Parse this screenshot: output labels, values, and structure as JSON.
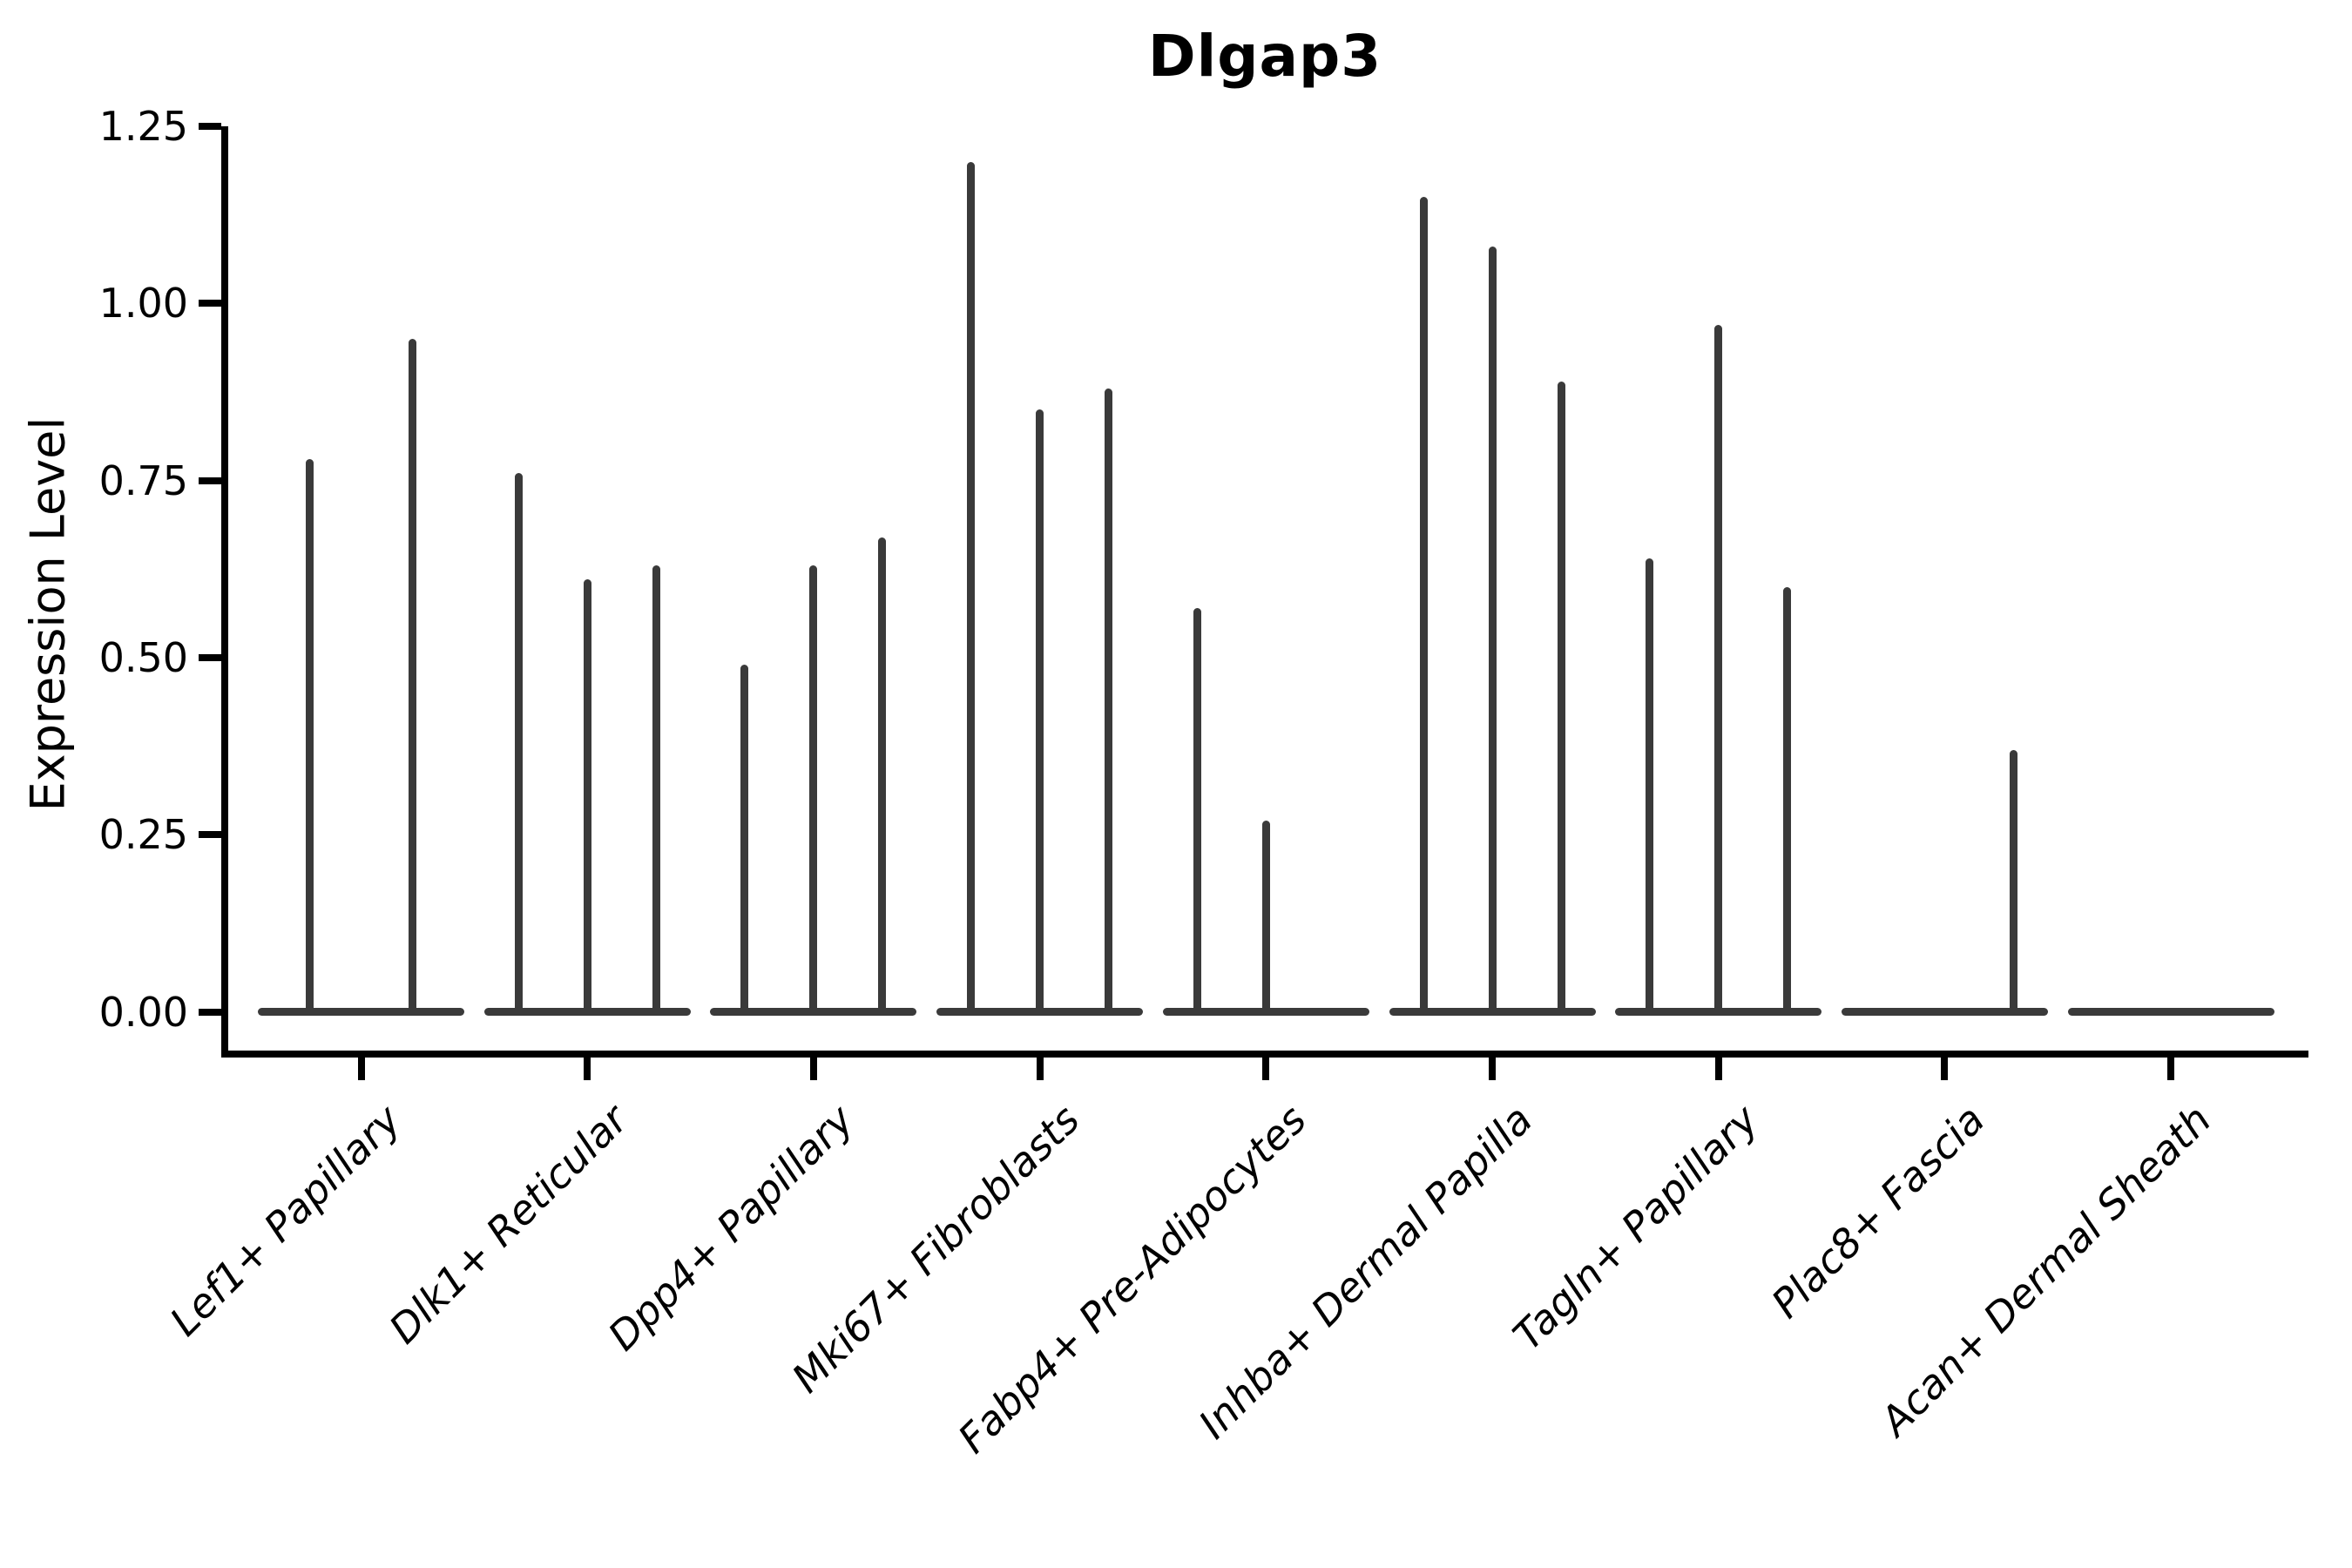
{
  "title": "Dlgap3",
  "y_axis_label": "Expression Level",
  "colors": {
    "background": "#ffffff",
    "axis": "#000000",
    "violin": "#3a3a3a"
  },
  "chart_data": {
    "type": "violin",
    "title": "Dlgap3",
    "xlabel": "",
    "ylabel": "Expression Level",
    "ylim": [
      -0.06,
      1.25
    ],
    "ytick_labels": [
      "0.00",
      "0.25",
      "0.50",
      "0.75",
      "1.00",
      "1.25"
    ],
    "ytick_values": [
      0.0,
      0.25,
      0.5,
      0.75,
      1.0,
      1.25
    ],
    "grid": false,
    "legend_position": "none",
    "note": "Each category shows narrow needle-like violins rising from a flat base at 0; values below are the peak (max expression) of each sub-violin, 0 = flat violin with no needle",
    "categories": [
      "Lef1+ Papillary",
      "Dlk1+ Reticular",
      "Dpp4+ Papillary",
      "Mki67+ Fibroblasts",
      "Fabp4+ Pre-Adipocytes",
      "Inhba+ Dermal Papilla",
      "Tagln+ Papillary",
      "Plac8+ Fascia",
      "Acan+ Dermal Sheath"
    ],
    "series": [
      {
        "category": "Lef1+ Papillary",
        "violin_peaks": [
          0.78,
          0.95
        ]
      },
      {
        "category": "Dlk1+ Reticular",
        "violin_peaks": [
          0.76,
          0.61,
          0.63
        ]
      },
      {
        "category": "Dpp4+ Papillary",
        "violin_peaks": [
          0.49,
          0.63,
          0.67
        ]
      },
      {
        "category": "Mki67+ Fibroblasts",
        "violin_peaks": [
          1.2,
          0.85,
          0.88
        ]
      },
      {
        "category": "Fabp4+ Pre-Adipocytes",
        "violin_peaks": [
          0.57,
          0.27,
          0
        ]
      },
      {
        "category": "Inhba+ Dermal Papilla",
        "violin_peaks": [
          1.15,
          1.08,
          0.89
        ]
      },
      {
        "category": "Tagln+ Papillary",
        "violin_peaks": [
          0.64,
          0.97,
          0.6
        ]
      },
      {
        "category": "Plac8+ Fascia",
        "violin_peaks": [
          0,
          0,
          0.37
        ]
      },
      {
        "category": "Acan+ Dermal Sheath",
        "violin_peaks": [
          0,
          0,
          0
        ]
      }
    ]
  }
}
